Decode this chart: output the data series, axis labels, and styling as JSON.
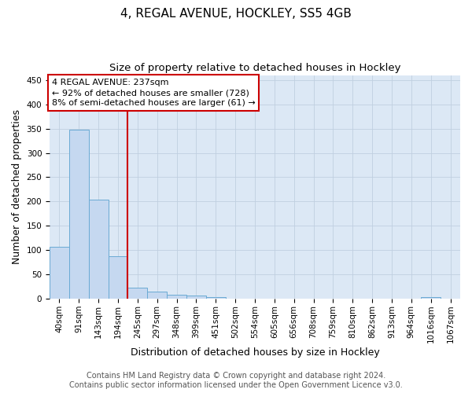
{
  "title": "4, REGAL AVENUE, HOCKLEY, SS5 4GB",
  "subtitle": "Size of property relative to detached houses in Hockley",
  "xlabel": "Distribution of detached houses by size in Hockley",
  "ylabel": "Number of detached properties",
  "footnote1": "Contains HM Land Registry data © Crown copyright and database right 2024.",
  "footnote2": "Contains public sector information licensed under the Open Government Licence v3.0.",
  "bin_labels": [
    "40sqm",
    "91sqm",
    "143sqm",
    "194sqm",
    "245sqm",
    "297sqm",
    "348sqm",
    "399sqm",
    "451sqm",
    "502sqm",
    "554sqm",
    "605sqm",
    "656sqm",
    "708sqm",
    "759sqm",
    "810sqm",
    "862sqm",
    "913sqm",
    "964sqm",
    "1016sqm",
    "1067sqm"
  ],
  "bar_values": [
    107,
    348,
    204,
    88,
    23,
    15,
    9,
    7,
    4,
    0,
    0,
    0,
    0,
    0,
    0,
    0,
    0,
    0,
    0,
    4,
    0
  ],
  "bar_color": "#c5d8f0",
  "bar_edge_color": "#6aaad4",
  "vline_x_index": 3.5,
  "vline_color": "#cc0000",
  "annotation_line1": "4 REGAL AVENUE: 237sqm",
  "annotation_line2": "← 92% of detached houses are smaller (728)",
  "annotation_line3": "8% of semi-detached houses are larger (61) →",
  "annotation_box_color": "#ffffff",
  "annotation_box_edge": "#cc0000",
  "ylim": [
    0,
    460
  ],
  "yticks": [
    0,
    50,
    100,
    150,
    200,
    250,
    300,
    350,
    400,
    450
  ],
  "ax_facecolor": "#dce8f5",
  "background_color": "#ffffff",
  "grid_color": "#c0cfe0",
  "title_fontsize": 11,
  "subtitle_fontsize": 9.5,
  "label_fontsize": 9,
  "tick_fontsize": 7.5,
  "footnote_fontsize": 7
}
